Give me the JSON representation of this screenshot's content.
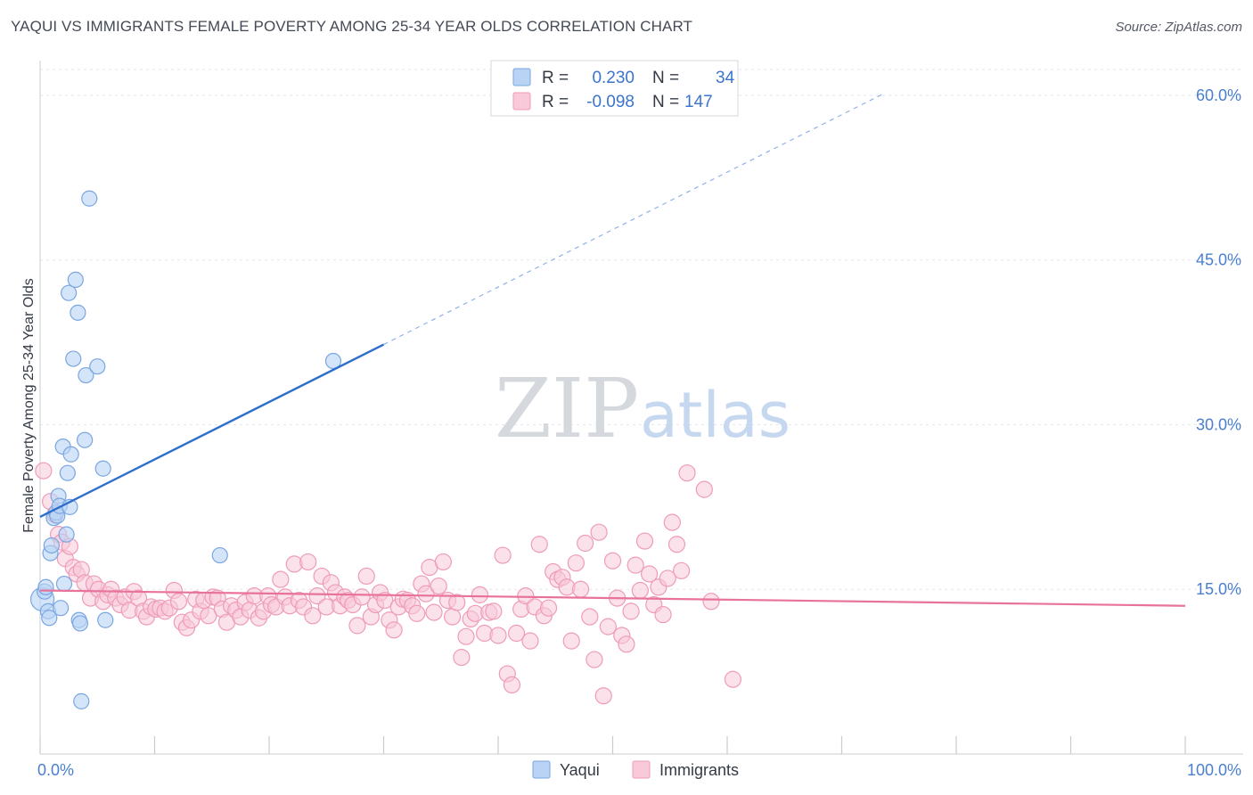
{
  "title": "YAQUI VS IMMIGRANTS FEMALE POVERTY AMONG 25-34 YEAR OLDS CORRELATION CHART",
  "source": "Source: ZipAtlas.com",
  "watermark": {
    "zip": "ZIP",
    "atlas": "atlas"
  },
  "colors": {
    "yaqui_fill": "#b9d3f5",
    "yaqui_stroke": "#7aa6e0",
    "yaqui_line": "#2e6fce",
    "imm_fill": "#f8c9d8",
    "imm_stroke": "#ef9bb8",
    "imm_line": "#e8739a",
    "tick_label": "#4a7fd0",
    "grid": "#e3e6ea"
  },
  "legend": {
    "rows": [
      {
        "r_label": "R =",
        "r_value": "0.230",
        "n_label": "N =",
        "n_value": "34"
      },
      {
        "r_label": "R =",
        "r_value": "-0.098",
        "n_label": "N =",
        "n_value": "147"
      }
    ]
  },
  "chart_data": {
    "type": "scatter",
    "title": "YAQUI VS IMMIGRANTS FEMALE POVERTY AMONG 25-34 YEAR OLDS CORRELATION CHART",
    "xlabel": "",
    "ylabel": "Female Poverty Among 25-34 Year Olds",
    "xlim": [
      0,
      100
    ],
    "ylim": [
      0,
      63
    ],
    "y_ticks": [
      15,
      30,
      45,
      60
    ],
    "y_tick_labels": [
      "15.0%",
      "30.0%",
      "45.0%",
      "60.0%"
    ],
    "x_tick_labels": [
      "0.0%",
      "100.0%"
    ],
    "grid": true,
    "legend_position": "top-center",
    "series": [
      {
        "name": "Yaqui",
        "r": 0.23,
        "n": 34,
        "trend": {
          "x_start": 0,
          "y_start": 21.6,
          "x_end": 30,
          "y_end": 37.3,
          "dash_x_end": 73.5
        },
        "points": [
          [
            0.2,
            14.1
          ],
          [
            0.4,
            14.8
          ],
          [
            0.5,
            15.2
          ],
          [
            0.7,
            13.0
          ],
          [
            0.8,
            12.4
          ],
          [
            0.9,
            18.3
          ],
          [
            1.0,
            19.0
          ],
          [
            1.2,
            21.5
          ],
          [
            1.4,
            22.0
          ],
          [
            1.5,
            21.7
          ],
          [
            1.6,
            23.5
          ],
          [
            1.7,
            22.6
          ],
          [
            1.8,
            13.3
          ],
          [
            2.0,
            28.0
          ],
          [
            2.1,
            15.5
          ],
          [
            2.3,
            20.0
          ],
          [
            2.4,
            25.6
          ],
          [
            2.5,
            42.0
          ],
          [
            2.7,
            27.3
          ],
          [
            2.9,
            36.0
          ],
          [
            3.1,
            43.2
          ],
          [
            3.3,
            40.2
          ],
          [
            3.4,
            12.2
          ],
          [
            3.5,
            11.9
          ],
          [
            3.6,
            4.8
          ],
          [
            3.9,
            28.6
          ],
          [
            4.0,
            34.5
          ],
          [
            4.3,
            50.6
          ],
          [
            5.0,
            35.3
          ],
          [
            5.5,
            26.0
          ],
          [
            5.7,
            12.2
          ],
          [
            15.7,
            18.1
          ],
          [
            25.6,
            35.8
          ],
          [
            2.6,
            22.5
          ]
        ]
      },
      {
        "name": "Immigrants",
        "r": -0.098,
        "n": 147,
        "trend": {
          "x_start": 0,
          "y_start": 14.9,
          "x_end": 100,
          "y_end": 13.5
        },
        "points": [
          [
            0.3,
            25.8
          ],
          [
            0.9,
            23.0
          ],
          [
            1.3,
            21.8
          ],
          [
            1.6,
            20.0
          ],
          [
            1.9,
            19.3
          ],
          [
            2.2,
            17.8
          ],
          [
            2.6,
            18.9
          ],
          [
            2.9,
            17.0
          ],
          [
            3.2,
            16.4
          ],
          [
            3.6,
            16.8
          ],
          [
            3.9,
            15.6
          ],
          [
            4.4,
            14.2
          ],
          [
            4.7,
            15.5
          ],
          [
            5.1,
            15.0
          ],
          [
            5.5,
            13.9
          ],
          [
            5.9,
            14.5
          ],
          [
            6.2,
            15.0
          ],
          [
            6.6,
            14.2
          ],
          [
            7.0,
            13.6
          ],
          [
            7.4,
            14.3
          ],
          [
            7.8,
            13.1
          ],
          [
            8.2,
            14.8
          ],
          [
            8.6,
            14.2
          ],
          [
            9.0,
            13.0
          ],
          [
            9.3,
            12.5
          ],
          [
            9.7,
            13.4
          ],
          [
            10.1,
            13.2
          ],
          [
            10.5,
            13.3
          ],
          [
            10.9,
            13.0
          ],
          [
            11.3,
            13.3
          ],
          [
            11.7,
            14.9
          ],
          [
            12.1,
            13.9
          ],
          [
            12.4,
            12.0
          ],
          [
            12.8,
            11.5
          ],
          [
            13.2,
            12.2
          ],
          [
            13.6,
            14.1
          ],
          [
            14.0,
            13.0
          ],
          [
            14.3,
            14.0
          ],
          [
            14.7,
            12.6
          ],
          [
            15.1,
            14.3
          ],
          [
            15.5,
            14.2
          ],
          [
            15.9,
            13.2
          ],
          [
            16.3,
            12.0
          ],
          [
            16.7,
            13.5
          ],
          [
            17.1,
            13.1
          ],
          [
            17.5,
            12.5
          ],
          [
            17.9,
            13.8
          ],
          [
            18.3,
            13.1
          ],
          [
            18.7,
            14.4
          ],
          [
            19.1,
            12.4
          ],
          [
            19.5,
            13.0
          ],
          [
            19.9,
            14.4
          ],
          [
            20.2,
            13.6
          ],
          [
            20.6,
            13.4
          ],
          [
            21.0,
            15.9
          ],
          [
            21.4,
            14.3
          ],
          [
            21.8,
            13.5
          ],
          [
            22.2,
            17.3
          ],
          [
            22.6,
            14.0
          ],
          [
            23.0,
            13.4
          ],
          [
            23.4,
            17.5
          ],
          [
            23.8,
            12.6
          ],
          [
            24.2,
            14.4
          ],
          [
            24.6,
            16.2
          ],
          [
            25.0,
            13.4
          ],
          [
            25.4,
            15.6
          ],
          [
            25.8,
            14.7
          ],
          [
            26.2,
            13.5
          ],
          [
            26.6,
            14.3
          ],
          [
            26.9,
            14.0
          ],
          [
            27.3,
            13.6
          ],
          [
            27.7,
            11.7
          ],
          [
            28.1,
            14.3
          ],
          [
            28.5,
            16.2
          ],
          [
            28.9,
            12.5
          ],
          [
            29.3,
            13.6
          ],
          [
            29.7,
            14.7
          ],
          [
            30.1,
            14.0
          ],
          [
            30.5,
            12.2
          ],
          [
            30.9,
            11.3
          ],
          [
            31.3,
            13.4
          ],
          [
            31.7,
            14.1
          ],
          [
            32.1,
            14.0
          ],
          [
            32.5,
            13.5
          ],
          [
            32.9,
            12.8
          ],
          [
            33.3,
            15.5
          ],
          [
            33.7,
            14.6
          ],
          [
            34.0,
            17.0
          ],
          [
            34.4,
            12.9
          ],
          [
            34.8,
            15.3
          ],
          [
            35.2,
            17.5
          ],
          [
            35.6,
            14.0
          ],
          [
            36.0,
            12.5
          ],
          [
            36.4,
            13.8
          ],
          [
            36.8,
            8.8
          ],
          [
            37.2,
            10.7
          ],
          [
            37.6,
            12.3
          ],
          [
            38.0,
            12.8
          ],
          [
            38.4,
            14.5
          ],
          [
            38.8,
            11.0
          ],
          [
            39.2,
            12.9
          ],
          [
            39.6,
            13.0
          ],
          [
            40.0,
            10.8
          ],
          [
            40.4,
            18.1
          ],
          [
            40.8,
            7.3
          ],
          [
            41.2,
            6.3
          ],
          [
            41.6,
            11.0
          ],
          [
            42.0,
            13.2
          ],
          [
            42.4,
            14.4
          ],
          [
            42.8,
            10.3
          ],
          [
            43.2,
            13.4
          ],
          [
            43.6,
            19.1
          ],
          [
            44.0,
            12.6
          ],
          [
            44.4,
            13.3
          ],
          [
            44.8,
            16.6
          ],
          [
            45.2,
            15.9
          ],
          [
            45.6,
            16.1
          ],
          [
            46.0,
            15.2
          ],
          [
            46.4,
            10.3
          ],
          [
            46.8,
            17.4
          ],
          [
            47.2,
            15.0
          ],
          [
            47.6,
            19.2
          ],
          [
            48.0,
            12.5
          ],
          [
            48.4,
            8.6
          ],
          [
            48.8,
            20.2
          ],
          [
            49.2,
            5.3
          ],
          [
            49.6,
            11.6
          ],
          [
            50.0,
            17.6
          ],
          [
            50.4,
            14.2
          ],
          [
            50.8,
            10.8
          ],
          [
            51.2,
            10.0
          ],
          [
            51.6,
            13.0
          ],
          [
            52.0,
            17.2
          ],
          [
            52.4,
            14.9
          ],
          [
            52.8,
            19.4
          ],
          [
            53.2,
            16.4
          ],
          [
            53.6,
            13.6
          ],
          [
            54.0,
            15.2
          ],
          [
            54.4,
            12.7
          ],
          [
            54.8,
            16.0
          ],
          [
            55.2,
            21.1
          ],
          [
            55.6,
            19.1
          ],
          [
            56.0,
            16.7
          ],
          [
            56.5,
            25.6
          ],
          [
            58.0,
            24.1
          ],
          [
            60.5,
            6.8
          ],
          [
            58.6,
            13.9
          ]
        ]
      }
    ]
  },
  "bottom_legend": [
    {
      "label": "Yaqui"
    },
    {
      "label": "Immigrants"
    }
  ]
}
